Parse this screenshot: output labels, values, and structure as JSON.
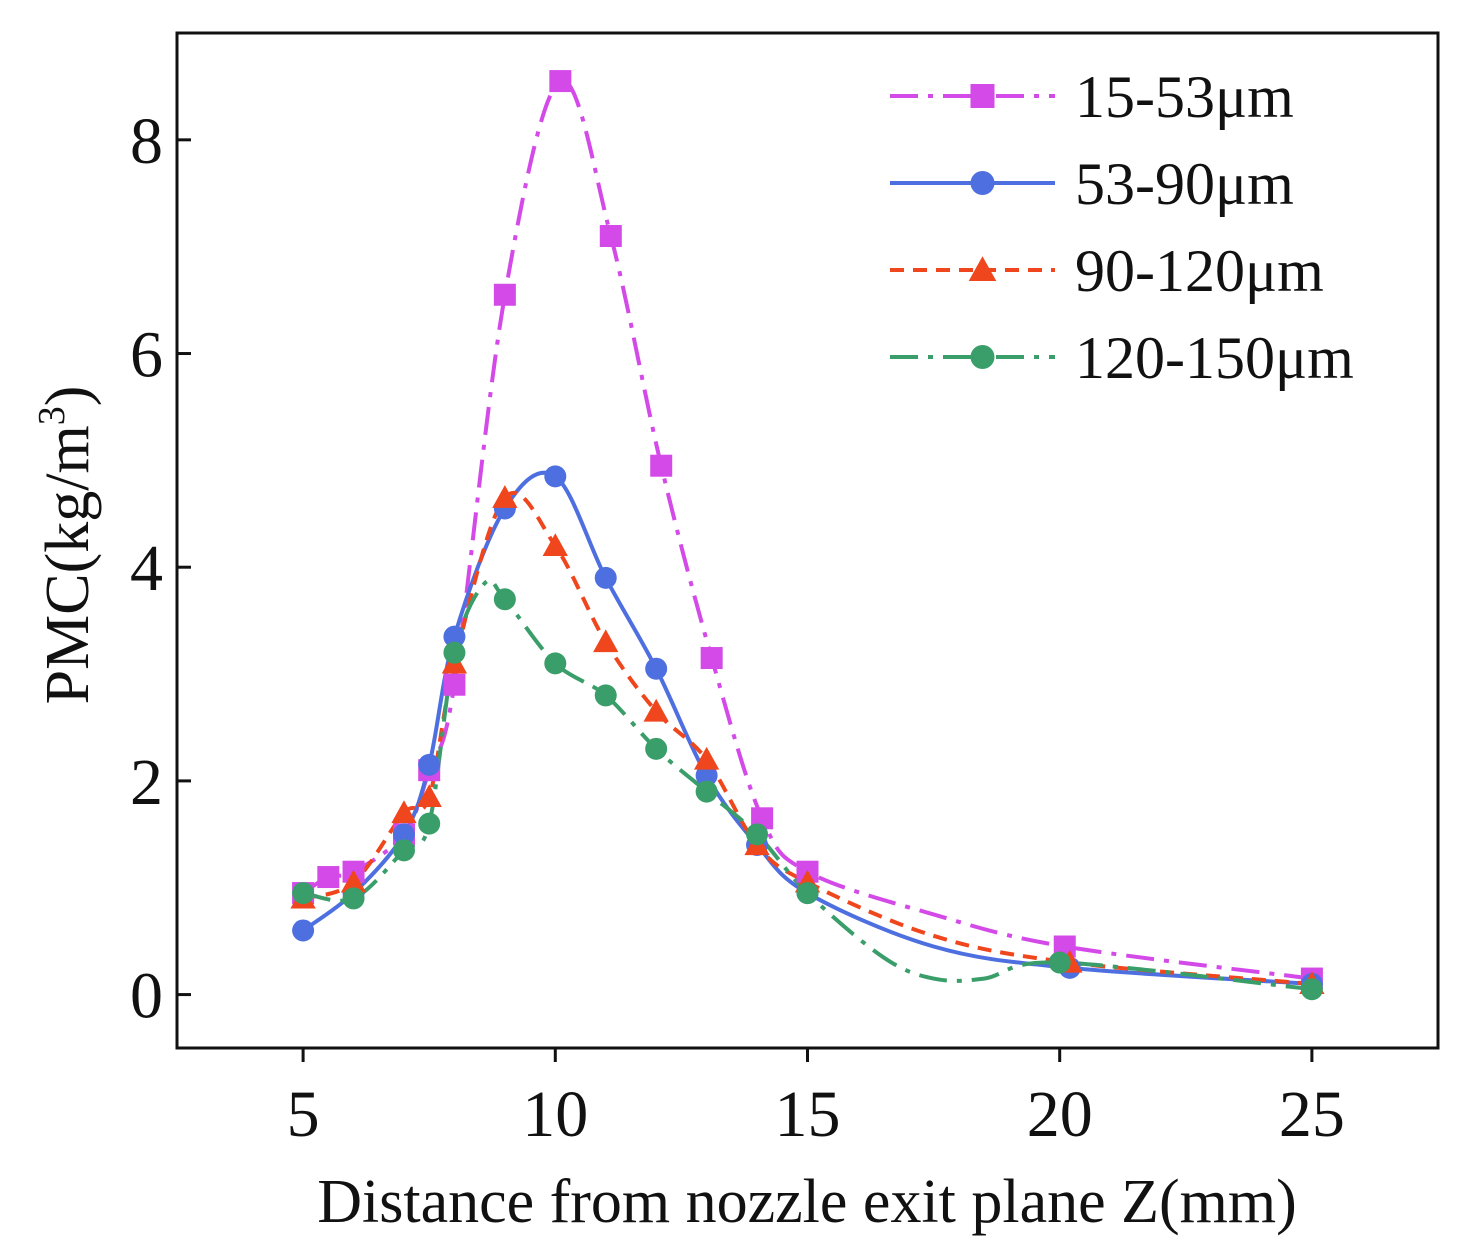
{
  "chart_data": {
    "type": "line",
    "title": "",
    "xlabel": "Distance from nozzle exit plane Z(mm)",
    "ylabel": {
      "main": "PMC(kg/m",
      "superscript": "3",
      "close": ")"
    },
    "xlim": [
      2.5,
      27.5
    ],
    "ylim": [
      -0.5,
      9.0
    ],
    "xticks": [
      5,
      10,
      15,
      20,
      25
    ],
    "xtick_labels": [
      "5",
      "10",
      "15",
      "20",
      "25"
    ],
    "yticks": [
      0,
      2,
      4,
      6,
      8
    ],
    "ytick_labels": [
      "0",
      "2",
      "4",
      "6",
      "8"
    ],
    "grid": false,
    "legend_position": "top-right",
    "series": [
      {
        "name": "15-53μm",
        "color": "#d44ae8",
        "marker": "square",
        "line_style": "dash-dot",
        "x": [
          5,
          5.5,
          6,
          7,
          7.5,
          8,
          9,
          10.1,
          11.1,
          12.1,
          13.1,
          14.1,
          15,
          20.1,
          25
        ],
        "y": [
          0.95,
          1.1,
          1.15,
          1.5,
          2.1,
          2.9,
          6.55,
          8.55,
          7.1,
          4.95,
          3.15,
          1.65,
          1.15,
          0.45,
          0.15
        ],
        "curve_x": [
          5,
          5.5,
          6,
          7,
          7.5,
          8,
          9,
          10.1,
          11.1,
          12.1,
          13.1,
          14.1,
          15,
          17.5,
          20.1,
          25
        ],
        "curve_y": [
          0.95,
          1.1,
          1.15,
          1.5,
          2.1,
          2.9,
          6.55,
          8.55,
          7.1,
          4.95,
          3.15,
          1.65,
          1.15,
          0.75,
          0.45,
          0.15
        ]
      },
      {
        "name": "53-90μm",
        "color": "#4e6fdf",
        "marker": "circle",
        "line_style": "solid",
        "x": [
          5,
          6,
          7,
          7.5,
          8,
          9,
          10,
          11,
          12,
          13,
          14,
          15,
          20.2,
          25
        ],
        "y": [
          0.6,
          0.95,
          1.5,
          2.15,
          3.35,
          4.55,
          4.85,
          3.9,
          3.05,
          2.05,
          1.4,
          0.95,
          0.25,
          0.1
        ],
        "curve_x": [
          5,
          6,
          7,
          7.5,
          8,
          9,
          10,
          11,
          12,
          13,
          14,
          15,
          17.5,
          20.2,
          25
        ],
        "curve_y": [
          0.6,
          0.95,
          1.5,
          2.15,
          3.35,
          4.55,
          4.85,
          3.9,
          3.05,
          2.05,
          1.4,
          0.95,
          0.45,
          0.25,
          0.1
        ]
      },
      {
        "name": "90-120μm",
        "color": "#f0461d",
        "marker": "triangle",
        "line_style": "dashed",
        "x": [
          5,
          6,
          7,
          7.5,
          8,
          9,
          10,
          11,
          12,
          13,
          14,
          15,
          20.2,
          25
        ],
        "y": [
          0.9,
          1.05,
          1.7,
          1.85,
          3.1,
          4.65,
          4.2,
          3.3,
          2.65,
          2.2,
          1.4,
          1.05,
          0.3,
          0.1
        ],
        "curve_x": [
          5,
          6,
          7,
          7.5,
          8,
          9,
          10,
          11,
          12,
          13,
          14,
          15,
          17.5,
          20.2,
          25
        ],
        "curve_y": [
          0.9,
          1.05,
          1.7,
          1.85,
          3.1,
          4.65,
          4.2,
          3.3,
          2.65,
          2.2,
          1.4,
          1.05,
          0.55,
          0.3,
          0.1
        ]
      },
      {
        "name": "120-150μm",
        "color": "#3a9e6a",
        "marker": "circle",
        "line_style": "dash-dot",
        "x": [
          5,
          6,
          7,
          7.5,
          8,
          9,
          10,
          11,
          12,
          13,
          14,
          15,
          20,
          25
        ],
        "y": [
          0.95,
          0.9,
          1.35,
          1.6,
          3.2,
          3.7,
          3.1,
          2.8,
          2.3,
          1.9,
          1.5,
          0.95,
          0.3,
          0.05
        ],
        "curve_x": [
          5,
          6,
          7,
          7.5,
          8,
          8.6,
          9,
          10,
          11,
          12,
          13,
          14,
          15,
          16.5,
          17.5,
          18.5,
          20,
          25
        ],
        "curve_y": [
          0.95,
          0.9,
          1.35,
          1.6,
          3.2,
          3.85,
          3.7,
          3.1,
          2.8,
          2.3,
          1.9,
          1.5,
          0.95,
          0.35,
          0.15,
          0.15,
          0.3,
          0.05
        ]
      }
    ]
  }
}
